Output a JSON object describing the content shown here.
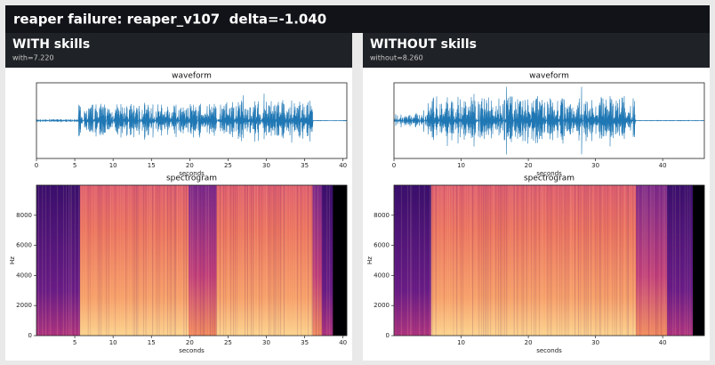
{
  "header": {
    "title": "reaper failure: reaper_v107  delta=-1.040"
  },
  "panels": [
    {
      "title": "WITH skills",
      "subtitle": "with=7.220",
      "waveform": {
        "title": "waveform",
        "xlabel": "seconds",
        "xlim": [
          0,
          40.5
        ],
        "xticks": [
          0,
          5,
          10,
          15,
          20,
          25,
          30,
          35,
          40
        ]
      },
      "spectrogram": {
        "title": "spectrogram",
        "xlabel": "seconds",
        "ylabel": "Hz",
        "xlim": [
          0,
          40.5
        ],
        "xticks": [
          5,
          10,
          15,
          20,
          25,
          30,
          35,
          40
        ],
        "ylim": [
          0,
          10000
        ],
        "yticks": [
          0,
          2000,
          4000,
          6000,
          8000
        ]
      }
    },
    {
      "title": "WITHOUT skills",
      "subtitle": "without=8.260",
      "waveform": {
        "title": "waveform",
        "xlabel": "seconds",
        "xlim": [
          0,
          46.2
        ],
        "xticks": [
          0,
          10,
          20,
          30,
          40
        ]
      },
      "spectrogram": {
        "title": "spectrogram",
        "xlabel": "seconds",
        "ylabel": "Hz",
        "xlim": [
          0,
          46.2
        ],
        "xticks": [
          10,
          20,
          30,
          40
        ],
        "ylim": [
          0,
          10000
        ],
        "yticks": [
          0,
          2000,
          4000,
          6000,
          8000
        ]
      }
    }
  ]
}
